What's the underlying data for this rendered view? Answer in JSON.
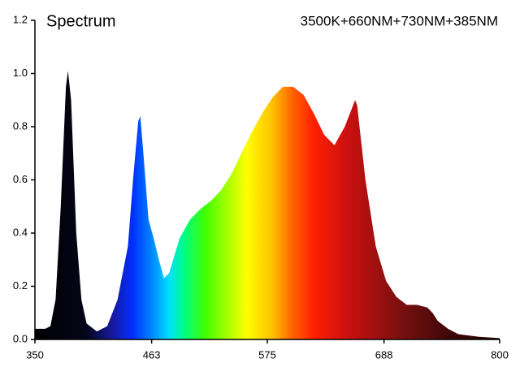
{
  "chart_data": {
    "type": "area",
    "title": "Spectrum",
    "annotation": "3500K+660NM+730NM+385NM",
    "x": [
      350,
      360,
      365,
      370,
      375,
      380,
      382,
      385,
      390,
      395,
      400,
      410,
      420,
      430,
      440,
      445,
      450,
      452,
      455,
      460,
      465,
      470,
      475,
      480,
      490,
      500,
      510,
      520,
      530,
      540,
      550,
      560,
      570,
      580,
      590,
      600,
      610,
      620,
      630,
      640,
      650,
      660,
      662,
      670,
      680,
      690,
      700,
      710,
      720,
      730,
      735,
      740,
      750,
      760,
      780,
      800
    ],
    "values": [
      0.04,
      0.04,
      0.05,
      0.15,
      0.5,
      0.95,
      1.01,
      0.9,
      0.4,
      0.15,
      0.06,
      0.03,
      0.05,
      0.15,
      0.35,
      0.6,
      0.82,
      0.84,
      0.7,
      0.45,
      0.38,
      0.3,
      0.23,
      0.25,
      0.38,
      0.45,
      0.49,
      0.52,
      0.56,
      0.62,
      0.7,
      0.78,
      0.85,
      0.91,
      0.95,
      0.95,
      0.92,
      0.85,
      0.77,
      0.73,
      0.8,
      0.9,
      0.88,
      0.6,
      0.35,
      0.22,
      0.16,
      0.13,
      0.13,
      0.12,
      0.1,
      0.07,
      0.04,
      0.02,
      0.01,
      0.005
    ],
    "gradient": [
      {
        "x": 350,
        "color": "#000000"
      },
      {
        "x": 400,
        "color": "#05051a"
      },
      {
        "x": 425,
        "color": "#1818a0"
      },
      {
        "x": 445,
        "color": "#0030ff"
      },
      {
        "x": 465,
        "color": "#0090ff"
      },
      {
        "x": 480,
        "color": "#00e0ff"
      },
      {
        "x": 495,
        "color": "#00ff80"
      },
      {
        "x": 515,
        "color": "#40ff00"
      },
      {
        "x": 555,
        "color": "#ffff00"
      },
      {
        "x": 580,
        "color": "#ffc000"
      },
      {
        "x": 600,
        "color": "#ff6000"
      },
      {
        "x": 620,
        "color": "#ff2000"
      },
      {
        "x": 650,
        "color": "#d01010"
      },
      {
        "x": 700,
        "color": "#801010"
      },
      {
        "x": 750,
        "color": "#400808"
      },
      {
        "x": 800,
        "color": "#200000"
      }
    ],
    "xlim": [
      350,
      800
    ],
    "ylim": [
      0,
      1.2
    ],
    "xticks": [
      350,
      463,
      575,
      688,
      800
    ],
    "yticks": [
      {
        "value": 0,
        "label": "0.0"
      },
      0.2,
      0.4,
      0.6,
      0.8,
      {
        "value": 1,
        "label": "1.0"
      },
      1.2
    ]
  }
}
